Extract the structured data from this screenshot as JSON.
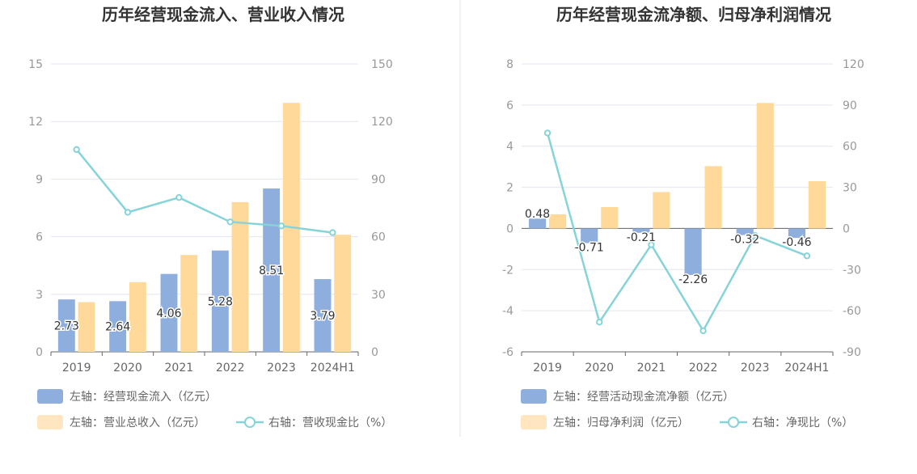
{
  "colors": {
    "bar_primary": "#8eaedd",
    "bar_secondary": "#ffd999",
    "bar_secondary_legend": "#ffe6c1",
    "line": "#86d3d8",
    "grid": "#e3e6f0",
    "axis": "#666666",
    "divider": "#e6e6e6"
  },
  "chart_data": [
    {
      "type": "bar",
      "title": "历年经营现金流入、营业收入情况",
      "categories": [
        "2019",
        "2020",
        "2021",
        "2022",
        "2023",
        "2024H1"
      ],
      "left_axis": {
        "min": 0,
        "max": 15,
        "ticks": [
          "0",
          "3",
          "6",
          "9",
          "12",
          "15"
        ]
      },
      "right_axis": {
        "min": 0,
        "max": 150,
        "ticks": [
          "0",
          "30",
          "60",
          "90",
          "120",
          "150"
        ]
      },
      "series": [
        {
          "name": "左轴：经营现金流入（亿元）",
          "kind": "bar",
          "axis": "left",
          "values": [
            2.73,
            2.64,
            4.06,
            5.28,
            8.51,
            3.79
          ],
          "labels": [
            "2.73",
            "2.64",
            "4.06",
            "5.28",
            "8.51",
            "3.79"
          ]
        },
        {
          "name": "左轴：营业总收入（亿元）",
          "kind": "bar",
          "axis": "left",
          "values": [
            2.59,
            3.63,
            5.05,
            7.8,
            12.97,
            6.1
          ]
        },
        {
          "name": "右轴：营收现金比（%）",
          "kind": "line",
          "axis": "right",
          "values": [
            105.4,
            72.7,
            80.4,
            67.7,
            65.6,
            62.1
          ]
        }
      ]
    },
    {
      "type": "bar",
      "title": "历年经营现金流净额、归母净利润情况",
      "categories": [
        "2019",
        "2020",
        "2021",
        "2022",
        "2023",
        "2024H1"
      ],
      "left_axis": {
        "min": -6,
        "max": 8,
        "ticks": [
          "-6",
          "-4",
          "-2",
          "0",
          "2",
          "4",
          "6",
          "8"
        ]
      },
      "right_axis": {
        "min": -90,
        "max": 120,
        "ticks": [
          "-90",
          "-60",
          "-30",
          "0",
          "30",
          "60",
          "90",
          "120"
        ]
      },
      "series": [
        {
          "name": "左轴：经营活动现金流净额（亿元）",
          "kind": "bar",
          "axis": "left",
          "values": [
            0.48,
            -0.71,
            -0.21,
            -2.26,
            -0.32,
            -0.46
          ],
          "labels": [
            "0.48",
            "-0.71",
            "-0.21",
            "-2.26",
            "-0.32",
            "-0.46"
          ]
        },
        {
          "name": "左轴：归母净利润（亿元）",
          "kind": "bar",
          "axis": "left",
          "values": [
            0.69,
            1.04,
            1.77,
            3.03,
            6.1,
            2.3
          ]
        },
        {
          "name": "右轴：净现比（%）",
          "kind": "line",
          "axis": "right",
          "values": [
            69.6,
            -68.3,
            -11.9,
            -74.6,
            -5.2,
            -20.0
          ]
        }
      ]
    }
  ]
}
